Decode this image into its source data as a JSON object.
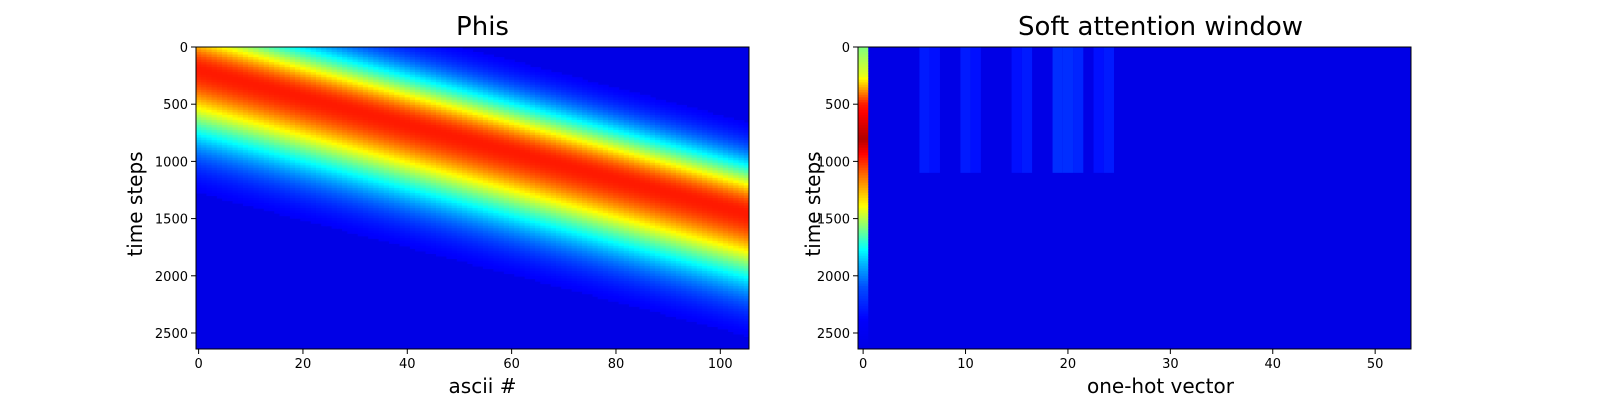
{
  "chart_data": [
    {
      "type": "heatmap",
      "title": "Phis",
      "xlabel": "ascii #",
      "ylabel": "time steps",
      "colormap": "jet",
      "xlim": [
        -0.5,
        105.5
      ],
      "ylim": [
        2640,
        0
      ],
      "x_ticks": [
        0,
        20,
        40,
        60,
        80,
        100
      ],
      "y_ticks": [
        0,
        500,
        1000,
        1500,
        2000,
        2500
      ],
      "n_columns": 106,
      "n_rows": 2640,
      "value_range": [
        0,
        1
      ],
      "band": {
        "description_values": "peak value 0.85 along a diagonal band",
        "center_at_x0": 200,
        "center_at_x105": 1450,
        "width": 650,
        "peak": 0.85
      },
      "grid": false,
      "legend": "none"
    },
    {
      "type": "heatmap",
      "title": "Soft attention window",
      "xlabel": "one-hot vector",
      "ylabel": "time steps",
      "colormap": "jet",
      "xlim": [
        -0.5,
        53.5
      ],
      "ylim": [
        2640,
        0
      ],
      "x_ticks": [
        0,
        10,
        20,
        30,
        40,
        50
      ],
      "y_ticks": [
        0,
        500,
        1000,
        1500,
        2000,
        2500
      ],
      "n_columns": 54,
      "n_rows": 2640,
      "value_range": [
        0,
        1
      ],
      "column_0_profile": [
        {
          "y": 0,
          "v": 0.5
        },
        {
          "y": 250,
          "v": 0.6
        },
        {
          "y": 500,
          "v": 0.85
        },
        {
          "y": 800,
          "v": 0.95
        },
        {
          "y": 1100,
          "v": 0.78
        },
        {
          "y": 1400,
          "v": 0.62
        },
        {
          "y": 1700,
          "v": 0.42
        },
        {
          "y": 1900,
          "v": 0.3
        },
        {
          "y": 2100,
          "v": 0.2
        },
        {
          "y": 2400,
          "v": 0.12
        },
        {
          "y": 2640,
          "v": 0.1
        }
      ],
      "faint_columns": [
        {
          "x": 6,
          "v": 0.05
        },
        {
          "x": 7,
          "v": 0.04
        },
        {
          "x": 10,
          "v": 0.05
        },
        {
          "x": 11,
          "v": 0.04
        },
        {
          "x": 15,
          "v": 0.04
        },
        {
          "x": 16,
          "v": 0.05
        },
        {
          "x": 19,
          "v": 0.07
        },
        {
          "x": 20,
          "v": 0.07
        },
        {
          "x": 21,
          "v": 0.06
        },
        {
          "x": 23,
          "v": 0.04
        },
        {
          "x": 24,
          "v": 0.05
        }
      ],
      "faint_column_extent": [
        0,
        1100
      ],
      "grid": false,
      "legend": "none"
    }
  ]
}
